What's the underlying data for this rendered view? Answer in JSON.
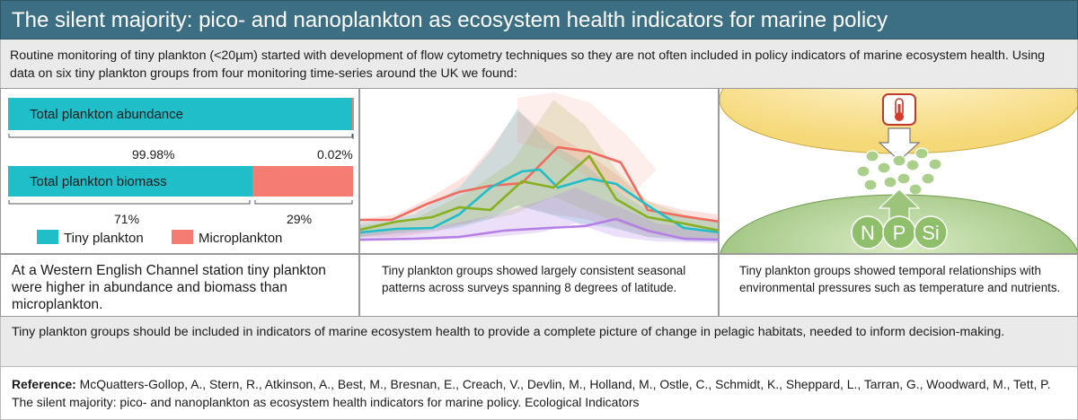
{
  "title": "The silent majority: pico- and nanoplankton as ecosystem health indicators for marine policy",
  "intro": "Routine monitoring of tiny plankton (<20µm) started with development of flow cytometry techniques so they are not often included in policy indicators of marine ecosystem health. Using data on six tiny plankton groups from four monitoring time-series around the UK we found:",
  "colors": {
    "title_bg": "#3d6f84",
    "tiny": "#1fbec9",
    "micro": "#f47c72"
  },
  "panel1": {
    "bar1_label": "Total plankton abundance",
    "bar1_tiny_pct": "99.98%",
    "bar1_micro_pct": "0.02%",
    "bar1_tiny_fraction": 0.9998,
    "bar2_label": "Total plankton biomass",
    "bar2_tiny_pct": "71%",
    "bar2_micro_pct": "29%",
    "bar2_tiny_fraction": 0.71,
    "legend_tiny": "Tiny plankton",
    "legend_micro": "Microplankton"
  },
  "panel3": {
    "nutrients": [
      "N",
      "P",
      "Si"
    ]
  },
  "captions": {
    "c1": "At a Western English Channel station tiny plankton were higher in abundance and biomass than microplankton.",
    "c2": "Tiny plankton groups showed largely consistent seasonal patterns across surveys spanning 8 degrees of latitude.",
    "c3": "Tiny plankton groups showed temporal relationships with environmental pressures such as temperature and nutrients."
  },
  "conclusion": "Tiny plankton groups should be included in indicators of marine ecosystem health to provide a complete picture of change in pelagic habitats, needed to inform decision-making.",
  "reference": {
    "label": "Reference:",
    "text": " McQuatters-Gollop, A., Stern, R., Atkinson, A., Best, M., Bresnan, E., Creach, V., Devlin, M., Holland, M., Ostle, C., Schmidt, K., Sheppard, L., Tarran, G., Woodward, M., Tett, P. The silent majority: pico- and nanoplankton as ecosystem health indicators for marine policy. Ecological Indicators"
  }
}
